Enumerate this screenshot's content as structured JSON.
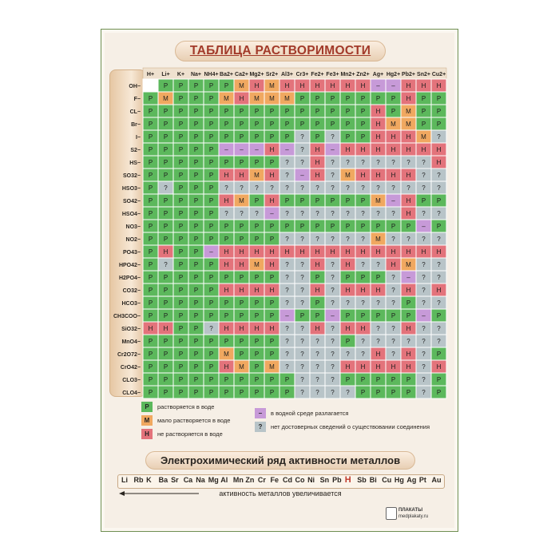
{
  "title": "ТАБЛИЦА РАСТВОРИМОСТИ",
  "cations": [
    "H+",
    "Li+",
    "K+",
    "Na+",
    "NH4+",
    "Ba2+",
    "Ca2+",
    "Mg2+",
    "Sr2+",
    "Al3+",
    "Cr3+",
    "Fe2+",
    "Fe3+",
    "Mn2+",
    "Zn2+",
    "Ag+",
    "Hg2+",
    "Pb2+",
    "Sn2+",
    "Cu2+"
  ],
  "anions": [
    "OH−",
    "F−",
    "CL−",
    "Br−",
    "I−",
    "S2−",
    "HS−",
    "SO32−",
    "HSO3−",
    "SO42−",
    "HSO4−",
    "NO3−",
    "NO2−",
    "PO43−",
    "HPO42−",
    "H2PO4−",
    "CO32−",
    "HCO3−",
    "CH3COO−",
    "SiO32−",
    "MnO4−",
    "Cr2O72−",
    "CrO42−",
    "CLO3−",
    "CLO4−"
  ],
  "grid": [
    [
      "",
      "Р",
      "Р",
      "Р",
      "Р",
      "Р",
      "М",
      "Н",
      "М",
      "Н",
      "Н",
      "Н",
      "Н",
      "Н",
      "Н",
      "–",
      "–",
      "Н",
      "Н",
      "Н"
    ],
    [
      "Р",
      "М",
      "Р",
      "Р",
      "Р",
      "М",
      "Н",
      "М",
      "М",
      "М",
      "Р",
      "Р",
      "Р",
      "Р",
      "Р",
      "Р",
      "Р",
      "Н",
      "Р",
      "Р"
    ],
    [
      "Р",
      "Р",
      "Р",
      "Р",
      "Р",
      "Р",
      "Р",
      "Р",
      "Р",
      "Р",
      "Р",
      "Р",
      "Р",
      "Р",
      "Р",
      "Н",
      "Р",
      "М",
      "Р",
      "Р"
    ],
    [
      "Р",
      "Р",
      "Р",
      "Р",
      "Р",
      "Р",
      "Р",
      "Р",
      "Р",
      "Р",
      "Р",
      "Р",
      "Р",
      "Р",
      "Р",
      "Н",
      "М",
      "М",
      "Р",
      "Р"
    ],
    [
      "Р",
      "Р",
      "Р",
      "Р",
      "Р",
      "Р",
      "Р",
      "Р",
      "Р",
      "Р",
      "?",
      "Р",
      "?",
      "Р",
      "Р",
      "Н",
      "Н",
      "Н",
      "М",
      "?"
    ],
    [
      "Р",
      "Р",
      "Р",
      "Р",
      "Р",
      "–",
      "–",
      "–",
      "Н",
      "–",
      "?",
      "Н",
      "–",
      "Н",
      "Н",
      "Н",
      "Н",
      "Н",
      "Н",
      "Н"
    ],
    [
      "Р",
      "Р",
      "Р",
      "Р",
      "Р",
      "Р",
      "Р",
      "Р",
      "Р",
      "?",
      "?",
      "Н",
      "?",
      "?",
      "?",
      "?",
      "?",
      "?",
      "?",
      "Н"
    ],
    [
      "Р",
      "Р",
      "Р",
      "Р",
      "Р",
      "Н",
      "Н",
      "М",
      "Н",
      "?",
      "–",
      "Н",
      "?",
      "М",
      "Н",
      "Н",
      "Н",
      "Н",
      "?",
      "?"
    ],
    [
      "Р",
      "?",
      "Р",
      "Р",
      "Р",
      "?",
      "?",
      "?",
      "?",
      "?",
      "?",
      "?",
      "?",
      "?",
      "?",
      "?",
      "?",
      "?",
      "?",
      "?"
    ],
    [
      "Р",
      "Р",
      "Р",
      "Р",
      "Р",
      "Н",
      "М",
      "Р",
      "Н",
      "Р",
      "Р",
      "Р",
      "Р",
      "Р",
      "Р",
      "М",
      "–",
      "Н",
      "Р",
      "Р"
    ],
    [
      "Р",
      "Р",
      "Р",
      "Р",
      "Р",
      "?",
      "?",
      "?",
      "–",
      "?",
      "?",
      "?",
      "?",
      "?",
      "?",
      "?",
      "?",
      "Н",
      "?",
      "?"
    ],
    [
      "Р",
      "Р",
      "Р",
      "Р",
      "Р",
      "Р",
      "Р",
      "Р",
      "Р",
      "Р",
      "Р",
      "Р",
      "Р",
      "Р",
      "Р",
      "Р",
      "Р",
      "Р",
      "–",
      "Р"
    ],
    [
      "Р",
      "Р",
      "Р",
      "Р",
      "Р",
      "Р",
      "Р",
      "Р",
      "Р",
      "?",
      "?",
      "?",
      "?",
      "?",
      "?",
      "М",
      "?",
      "?",
      "?",
      "?"
    ],
    [
      "Р",
      "Н",
      "Р",
      "Р",
      "–",
      "Н",
      "Н",
      "Н",
      "Н",
      "Н",
      "Н",
      "Н",
      "Н",
      "Н",
      "Н",
      "Н",
      "Н",
      "Н",
      "Н",
      "Н"
    ],
    [
      "Р",
      "?",
      "Р",
      "Р",
      "Р",
      "Н",
      "Н",
      "М",
      "Н",
      "?",
      "?",
      "Н",
      "?",
      "Н",
      "?",
      "?",
      "Н",
      "М",
      "?",
      "?"
    ],
    [
      "Р",
      "Р",
      "Р",
      "Р",
      "Р",
      "Р",
      "Р",
      "Р",
      "Р",
      "?",
      "?",
      "Р",
      "?",
      "Р",
      "Р",
      "Р",
      "?",
      "–",
      "?",
      "?"
    ],
    [
      "Р",
      "Р",
      "Р",
      "Р",
      "Р",
      "Н",
      "Н",
      "Н",
      "Н",
      "?",
      "?",
      "Н",
      "?",
      "Н",
      "Н",
      "Н",
      "?",
      "Н",
      "?",
      "Н"
    ],
    [
      "Р",
      "Р",
      "Р",
      "Р",
      "Р",
      "Р",
      "Р",
      "Р",
      "Р",
      "?",
      "?",
      "Р",
      "?",
      "?",
      "?",
      "?",
      "?",
      "Р",
      "?",
      "?"
    ],
    [
      "Р",
      "Р",
      "Р",
      "Р",
      "Р",
      "Р",
      "Р",
      "Р",
      "Р",
      "–",
      "Р",
      "Р",
      "–",
      "Р",
      "Р",
      "Р",
      "Р",
      "Р",
      "–",
      "Р"
    ],
    [
      "Н",
      "Н",
      "Р",
      "Р",
      "?",
      "Н",
      "Н",
      "Н",
      "Н",
      "?",
      "?",
      "Н",
      "?",
      "Н",
      "Н",
      "?",
      "?",
      "Н",
      "?",
      "?"
    ],
    [
      "Р",
      "Р",
      "Р",
      "Р",
      "Р",
      "Р",
      "Р",
      "Р",
      "Р",
      "?",
      "?",
      "?",
      "?",
      "Р",
      "?",
      "?",
      "?",
      "?",
      "?",
      "?"
    ],
    [
      "Р",
      "Р",
      "Р",
      "Р",
      "Р",
      "М",
      "Р",
      "Р",
      "Р",
      "?",
      "?",
      "?",
      "?",
      "?",
      "?",
      "Н",
      "?",
      "Н",
      "?",
      "Р"
    ],
    [
      "Р",
      "Р",
      "Р",
      "Р",
      "Р",
      "Н",
      "М",
      "Р",
      "М",
      "?",
      "?",
      "?",
      "?",
      "Н",
      "Н",
      "Н",
      "Н",
      "Н",
      "?",
      "Н"
    ],
    [
      "Р",
      "Р",
      "Р",
      "Р",
      "Р",
      "Р",
      "Р",
      "Р",
      "Р",
      "Р",
      "?",
      "?",
      "?",
      "Р",
      "Р",
      "Р",
      "Р",
      "Р",
      "?",
      "Р"
    ],
    [
      "Р",
      "Р",
      "Р",
      "Р",
      "Р",
      "Р",
      "Р",
      "Р",
      "Р",
      "Р",
      "?",
      "?",
      "?",
      "?",
      "Р",
      "Р",
      "Р",
      "Р",
      "?",
      "Р"
    ]
  ],
  "colors": {
    "Р": "#5cb85c",
    "М": "#f0a860",
    "Н": "#e3737b",
    "–": "#c79ad8",
    "?": "#b8c4c8",
    "": "#ffffff"
  },
  "legend": [
    {
      "symbol": "Р",
      "text": "растворяется в воде"
    },
    {
      "symbol": "М",
      "text": "мало растворяется в воде"
    },
    {
      "symbol": "Н",
      "text": "не растворяется в воде"
    },
    {
      "symbol": "–",
      "text": "в водной среде разлагается"
    },
    {
      "symbol": "?",
      "text": "нет достоверных сведений о существовании соединения"
    }
  ],
  "series_title": "Электрохимический ряд активности металлов",
  "series": [
    "Li",
    "Rb",
    "K",
    "Ba",
    "Sr",
    "Ca",
    "Na",
    "Mg",
    "Al",
    "Mn",
    "Zn",
    "Cr",
    "Fe",
    "Cd",
    "Co",
    "Ni",
    "Sn",
    "Pb",
    "H",
    "Sb",
    "Bi",
    "Cu",
    "Hg",
    "Ag",
    "Pt",
    "Au"
  ],
  "series_caption": "активность металлов увеличивается",
  "brand": {
    "name": "ПЛАКАТЫ",
    "site": "medplakaty.ru"
  }
}
